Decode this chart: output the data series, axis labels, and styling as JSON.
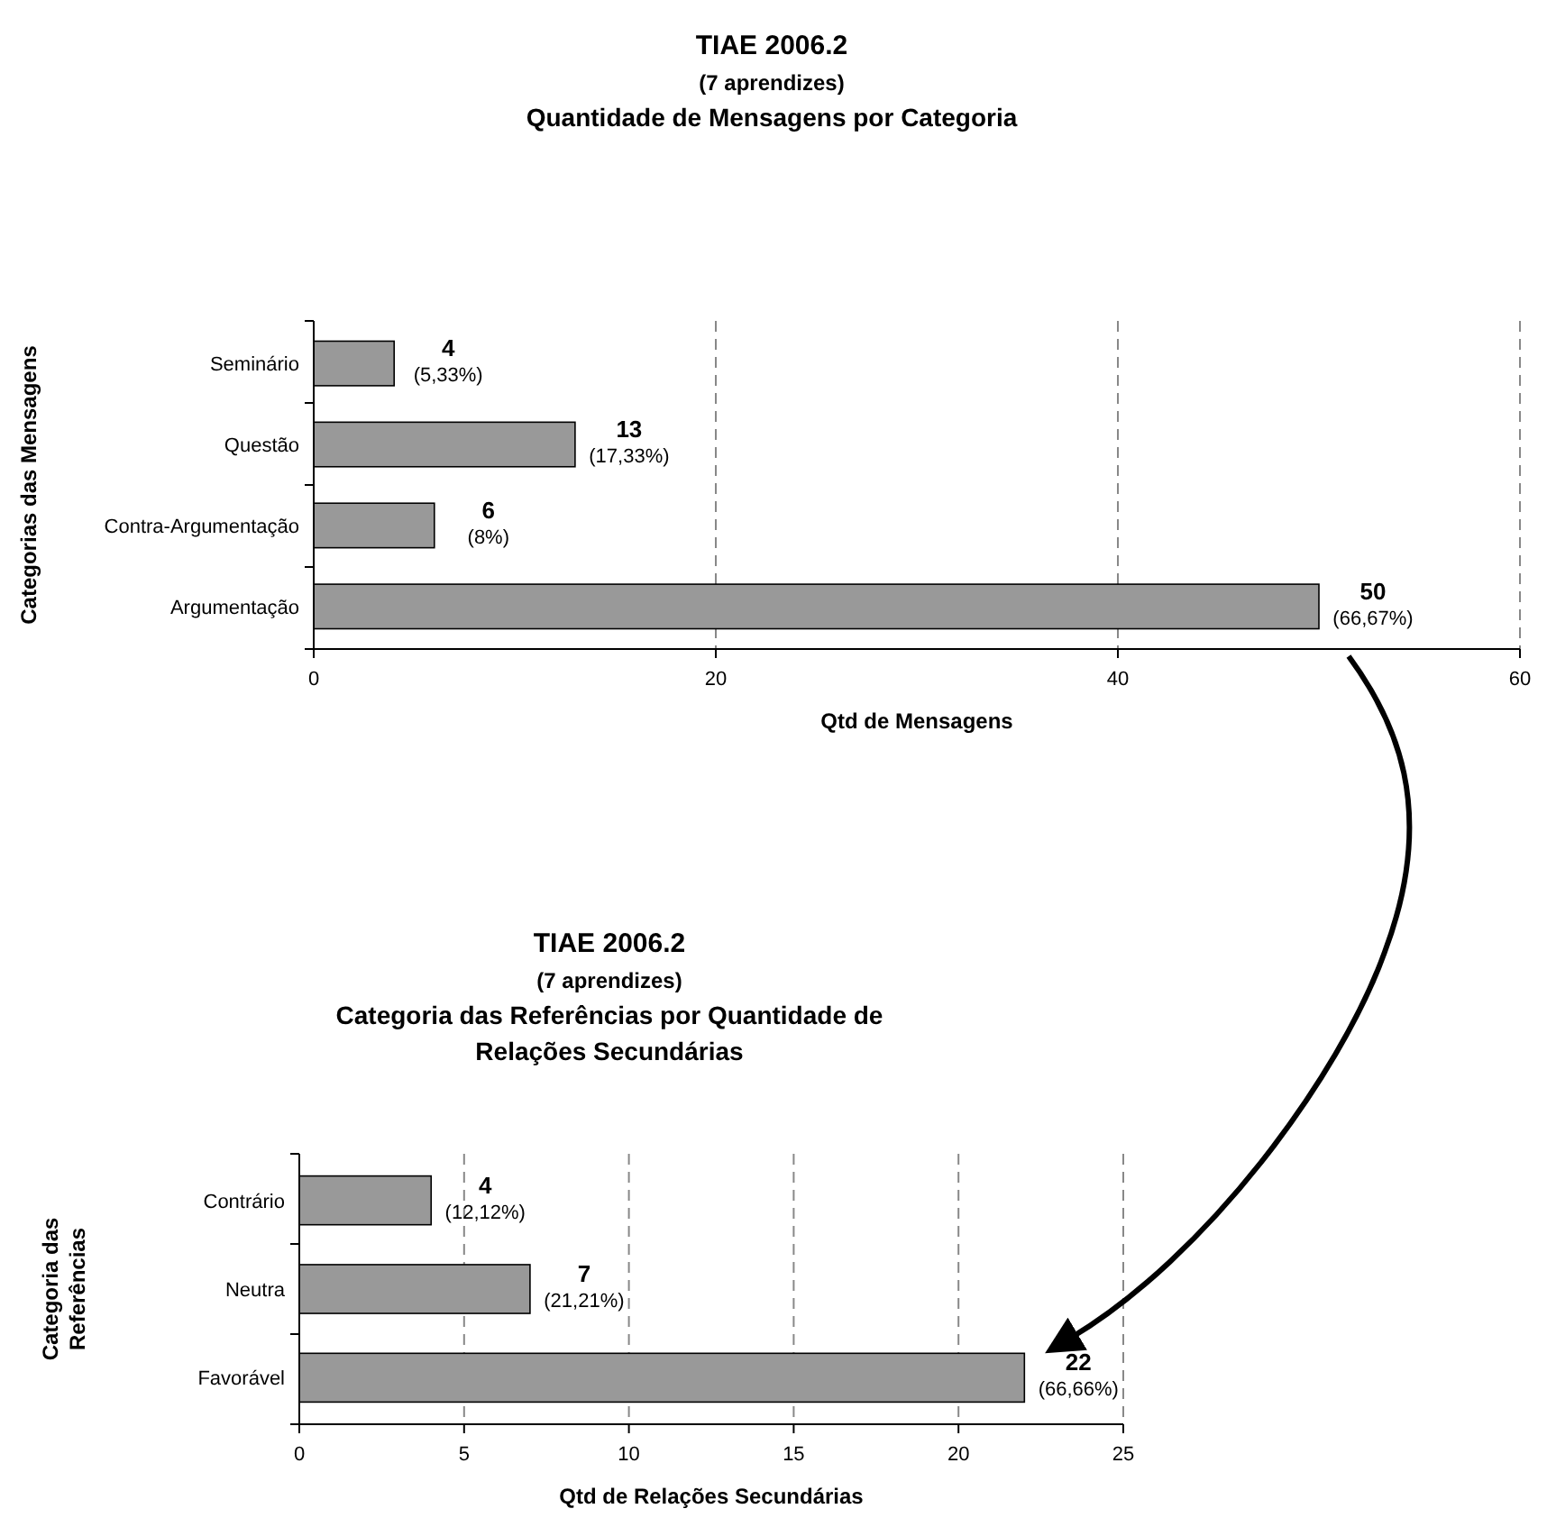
{
  "chart_data": [
    {
      "type": "bar",
      "orientation": "horizontal",
      "title": "TIAE 2006.2",
      "subtitle": "(7 aprendizes)\nQuantidade de Mensagens por Categoria",
      "categories": [
        "Seminário",
        "Questão",
        "Contra-Argumentação",
        "Argumentação"
      ],
      "values": [
        4,
        13,
        6,
        50
      ],
      "color": "#999999",
      "value_labels": [
        "4\n(5,33%)",
        "13\n(17,33%)",
        "6\n(8%)",
        "50\n(66,67%)"
      ],
      "xlim": [
        0,
        60
      ],
      "xticks": [
        0,
        20,
        40,
        60
      ],
      "grid": "x",
      "xlabel": "Qtd de Mensagens",
      "ylabel": "Categorias das Mensagens"
    },
    {
      "type": "bar",
      "orientation": "horizontal",
      "title": "TIAE 2006.2",
      "subtitle": "(7 aprendizes)\nCategoria das Referências por Quantidade de\nRelações Secundárias",
      "categories": [
        "Contrário",
        "Neutra",
        "Favorável"
      ],
      "values": [
        4,
        7,
        22
      ],
      "color": "#999999",
      "value_labels": [
        "4\n(12,12%)",
        "7\n(21,21%)",
        "22\n(66,66%)"
      ],
      "xlim": [
        0,
        25
      ],
      "xticks": [
        0,
        5,
        10,
        15,
        20,
        25
      ],
      "grid": "x",
      "xlabel": "Qtd de Relações Secundárias",
      "ylabel": "Categoria das\nReferências"
    }
  ]
}
